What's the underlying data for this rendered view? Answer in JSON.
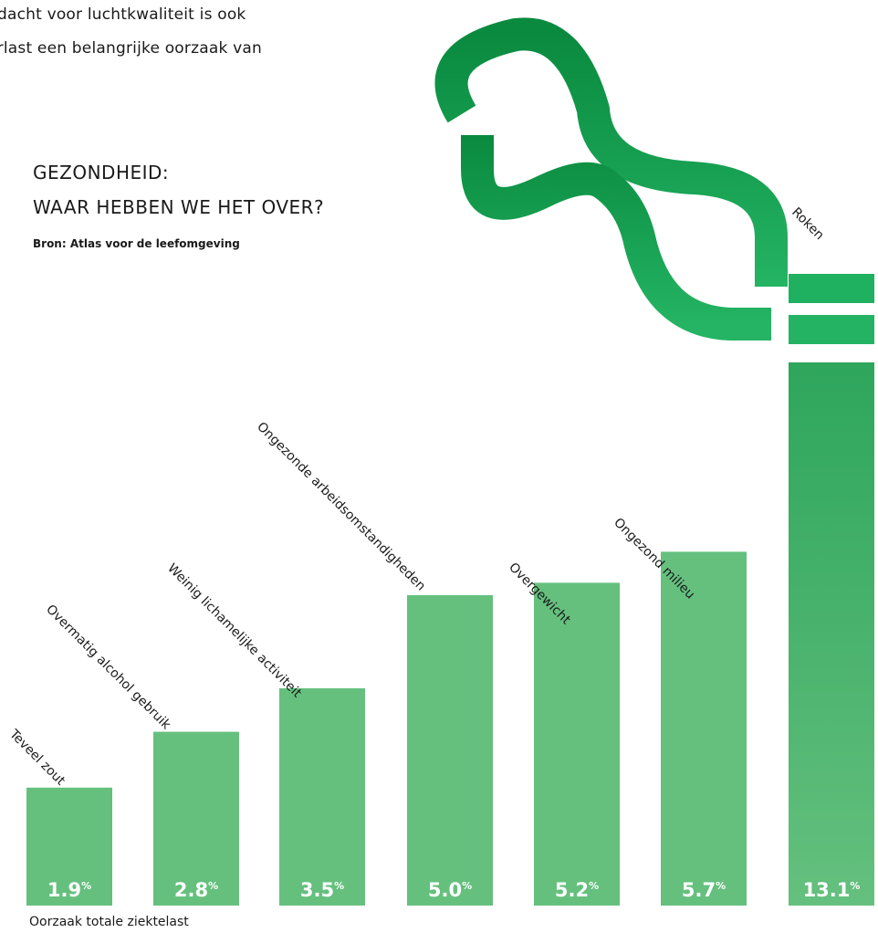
{
  "intro": {
    "line1": "ndacht voor luchtkwaliteit is ook",
    "line2": "erlast een belangrijke oorzaak van"
  },
  "chart_data": {
    "type": "bar",
    "title_lines": [
      "GEZONDHEID:",
      "WAAR HEBBEN WE HET OVER?"
    ],
    "source": "Bron: Atlas voor de leefomgeving",
    "xlabel": "Oorzaak totale ziektelast",
    "categories": [
      "Teveel zout",
      "Overmatig alcohol gebruik",
      "Weinig lichamelijke activiteit",
      "Ongezonde arbeidsomstandigheden",
      "Overgewicht",
      "Ongezond milieu",
      "Roken"
    ],
    "values": [
      1.9,
      2.8,
      3.5,
      5.0,
      5.2,
      5.7,
      13.1
    ],
    "value_labels": [
      "1.9",
      "2.8",
      "3.5",
      "5.0",
      "5.2",
      "5.7",
      "13.1"
    ],
    "unit": "%",
    "ylim": [
      0,
      13.1
    ],
    "axis_break_on": "Roken",
    "colors": {
      "bar": "#65c07e",
      "bar_dark": "#2ea65c",
      "pipe_dark": "#0a8a3f",
      "pipe_light": "#20b363",
      "text": "#ffffff"
    },
    "grid": false,
    "legend": "none"
  }
}
